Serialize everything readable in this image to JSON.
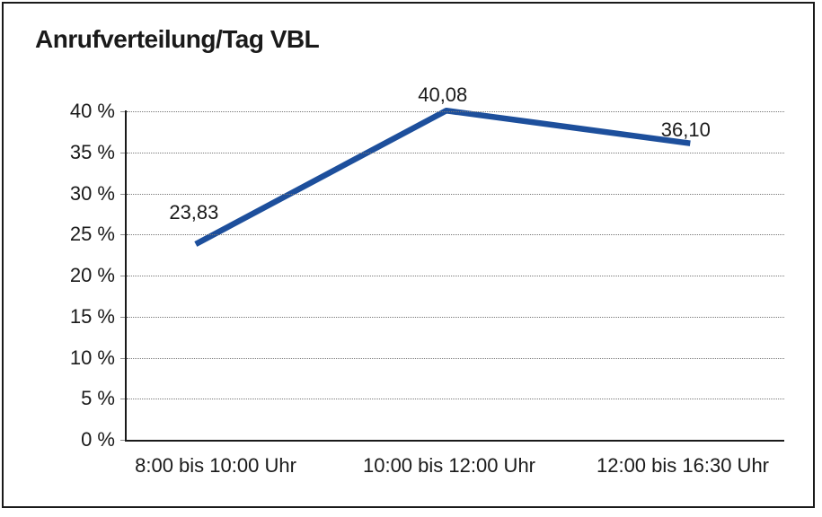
{
  "chart_data": {
    "type": "line",
    "title": "Anrufverteilung/Tag VBL",
    "categories": [
      "8:00 bis 10:00 Uhr",
      "10:00 bis 12:00 Uhr",
      "12:00 bis 16:30 Uhr"
    ],
    "series": [
      {
        "values": [
          23.83,
          40.08,
          36.1
        ],
        "point_labels": [
          "23,83",
          "40,08",
          "36,10"
        ]
      }
    ],
    "xlabel": "",
    "ylabel": "",
    "ylim": [
      0,
      40
    ],
    "ytick_step": 5,
    "yticks": [
      {
        "value": 40,
        "label": "40 %"
      },
      {
        "value": 35,
        "label": "35 %"
      },
      {
        "value": 30,
        "label": "30 %"
      },
      {
        "value": 25,
        "label": "25 %"
      },
      {
        "value": 20,
        "label": "20 %"
      },
      {
        "value": 15,
        "label": "15 %"
      },
      {
        "value": 10,
        "label": "10 %"
      },
      {
        "value": 5,
        "label": "5 %"
      },
      {
        "value": 0,
        "label": "0 %"
      }
    ],
    "grid": "horizontal-dotted",
    "legend": "none",
    "colors": {
      "line": "#1d4f9c",
      "axis": "#1a1a1a",
      "grid": "#787878",
      "text": "#1a1a1a",
      "background": "#ffffff"
    }
  }
}
